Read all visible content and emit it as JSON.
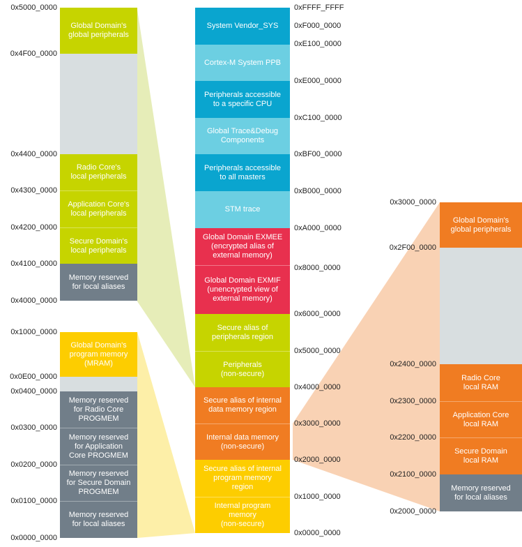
{
  "colors": {
    "lime": "#c6d400",
    "gray_light": "#d8dee0",
    "slate": "#717e89",
    "blue_dark": "#0aa5cf",
    "blue_light": "#6ccfe2",
    "red": "#e8304e",
    "orange": "#f07c22",
    "yellow": "#fdcd00",
    "lime_shade": "#e6edb8",
    "yellow_shade": "#fdefa8",
    "orange_shade": "#f9d2b4"
  },
  "center": {
    "blocks": [
      {
        "label": "System Vendor_SYS",
        "color": "blue_dark"
      },
      {
        "label": "Cortex-M System PPB",
        "color": "blue_light"
      },
      {
        "label": "Peripherals accessible\nto a specific CPU",
        "color": "blue_dark"
      },
      {
        "label": "Global Trace&Debug\nComponents",
        "color": "blue_light"
      },
      {
        "label": "Peripherals accessible\nto all masters",
        "color": "blue_dark"
      },
      {
        "label": "STM trace",
        "color": "blue_light"
      },
      {
        "label": "Global Domain EXMEE\n(encrypted alias of\nexternal memory)",
        "color": "red"
      },
      {
        "label": "Global Domain EXMIF\n(unencrypted view of\nexternal memory)",
        "color": "red"
      },
      {
        "label": "Secure alias of\nperipherals region",
        "color": "lime"
      },
      {
        "label": "Peripherals\n(non-secure)",
        "color": "lime"
      },
      {
        "label": "Secure alias of internal\ndata memory region",
        "color": "orange"
      },
      {
        "label": "Internal data memory\n(non-secure)",
        "color": "orange"
      },
      {
        "label": "Secure alias of internal\nprogram memory\nregion",
        "color": "yellow"
      },
      {
        "label": "Internal program\nmemory\n(non-secure)",
        "color": "yellow"
      }
    ],
    "addresses": [
      "0xFFFF_FFFF",
      "0xF000_0000",
      "0xE100_0000",
      "0xE000_0000",
      "0xC100_0000",
      "0xBF00_0000",
      "0xB000_0000",
      "0xA000_0000",
      "0x8000_0000",
      "0x6000_0000",
      "0x5000_0000",
      "0x4000_0000",
      "0x3000_0000",
      "0x2000_0000",
      "0x1000_0000",
      "0x0000_0000"
    ]
  },
  "periph_map": {
    "blocks": [
      {
        "label": "Global Domain's\nglobal peripherals",
        "color": "lime"
      },
      {
        "label": "",
        "color": "gray_light"
      },
      {
        "label": "Radio Core's\nlocal peripherals",
        "color": "lime"
      },
      {
        "label": "Application Core's\nlocal peripherals",
        "color": "lime"
      },
      {
        "label": "Secure Domain's\nlocal peripherals",
        "color": "lime"
      },
      {
        "label": "Memory reserved\nfor local aliases",
        "color": "slate"
      }
    ],
    "addresses": [
      "0x5000_0000",
      "0x4F00_0000",
      "0x4400_0000",
      "0x4300_0000",
      "0x4200_0000",
      "0x4100_0000",
      "0x4000_0000"
    ]
  },
  "program_map": {
    "blocks": [
      {
        "label": "Global Domain's\nprogram memory\n(MRAM)",
        "color": "yellow"
      },
      {
        "label": "",
        "color": "gray_light"
      },
      {
        "label": "Memory reserved\nfor Radio Core\nPROGMEM",
        "color": "slate"
      },
      {
        "label": "Memory reserved\nfor Application\nCore PROGMEM",
        "color": "slate"
      },
      {
        "label": "Memory reserved\nfor Secure Domain\nPROGMEM",
        "color": "slate"
      },
      {
        "label": "Memory reserved\nfor local aliases",
        "color": "slate"
      }
    ],
    "addresses": [
      "0x1000_0000",
      "0x0E00_0000",
      "0x0400_0000",
      "0x0300_0000",
      "0x0200_0000",
      "0x0100_0000",
      "0x0000_0000"
    ]
  },
  "data_map": {
    "blocks": [
      {
        "label": "Global Domain's\nglobal peripherals",
        "color": "orange"
      },
      {
        "label": "",
        "color": "gray_light"
      },
      {
        "label": "Radio Core\nlocal RAM",
        "color": "orange"
      },
      {
        "label": "Application Core\nlocal RAM",
        "color": "orange"
      },
      {
        "label": "Secure Domain\nlocal RAM",
        "color": "orange"
      },
      {
        "label": "Memory reserved\nfor local aliases",
        "color": "slate"
      }
    ],
    "addresses": [
      "0x3000_0000",
      "0x2F00_0000",
      "0x2400_0000",
      "0x2300_0000",
      "0x2200_0000",
      "0x2100_0000",
      "0x2000_0000"
    ]
  }
}
